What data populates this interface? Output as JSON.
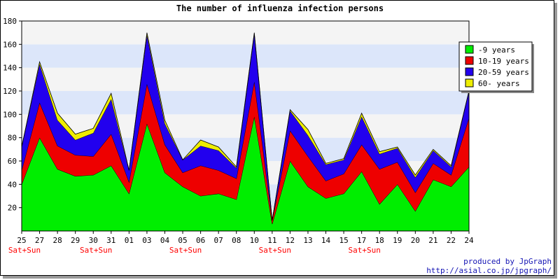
{
  "colors": {
    "background": "#ffffff",
    "band_light": "#f4f4f4",
    "band_blue": "#dce6fa",
    "weekend": "#ff0000",
    "credit": "#1414b4"
  },
  "chart_data": {
    "type": "area",
    "stacked": true,
    "title": "The number of influenza infection persons",
    "xlabel": "",
    "ylabel": "",
    "ylim": [
      0,
      180
    ],
    "yticks": [
      20,
      40,
      60,
      80,
      100,
      120,
      140,
      160,
      180
    ],
    "grid": "horizontal bands",
    "legend_position": "right",
    "categories": [
      "25",
      "27",
      "28",
      "29",
      "30",
      "31",
      "01",
      "03",
      "04",
      "05",
      "06",
      "07",
      "08",
      "10",
      "11",
      "12",
      "13",
      "14",
      "15",
      "17",
      "18",
      "19",
      "20",
      "21",
      "22",
      "24"
    ],
    "weekend_label": "Sat+Sun",
    "weekend_after": [
      "25",
      "30",
      "05",
      "11",
      "17"
    ],
    "series": [
      {
        "name": "-9 years",
        "color": "#00ee00",
        "values": [
          40,
          80,
          53,
          47,
          48,
          56,
          32,
          92,
          50,
          38,
          30,
          32,
          27,
          98,
          6,
          60,
          38,
          28,
          32,
          51,
          23,
          40,
          17,
          44,
          38,
          55
        ]
      },
      {
        "name": "10-19 years",
        "color": "#ee0000",
        "values": [
          12,
          30,
          20,
          18,
          16,
          27,
          10,
          34,
          24,
          12,
          26,
          20,
          18,
          30,
          3,
          26,
          26,
          15,
          17,
          23,
          30,
          19,
          16,
          14,
          10,
          42
        ]
      },
      {
        "name": "20-59 years",
        "color": "#2200ee",
        "values": [
          20,
          33,
          22,
          13,
          20,
          30,
          10,
          42,
          18,
          11,
          17,
          17,
          9,
          41,
          0,
          17,
          18,
          14,
          12,
          24,
          13,
          12,
          13,
          11,
          7,
          23
        ]
      },
      {
        "name": "60- years",
        "color": "#eeee00",
        "values": [
          0,
          2,
          6,
          5,
          4,
          5,
          0,
          2,
          3,
          0,
          5,
          3,
          1,
          1,
          0,
          1,
          5,
          1,
          1,
          3,
          2,
          1,
          2,
          1,
          1,
          0
        ]
      }
    ]
  },
  "credit": {
    "line1": "produced by JpGraph",
    "line2": "http://asial.co.jp/jpgraph/"
  }
}
